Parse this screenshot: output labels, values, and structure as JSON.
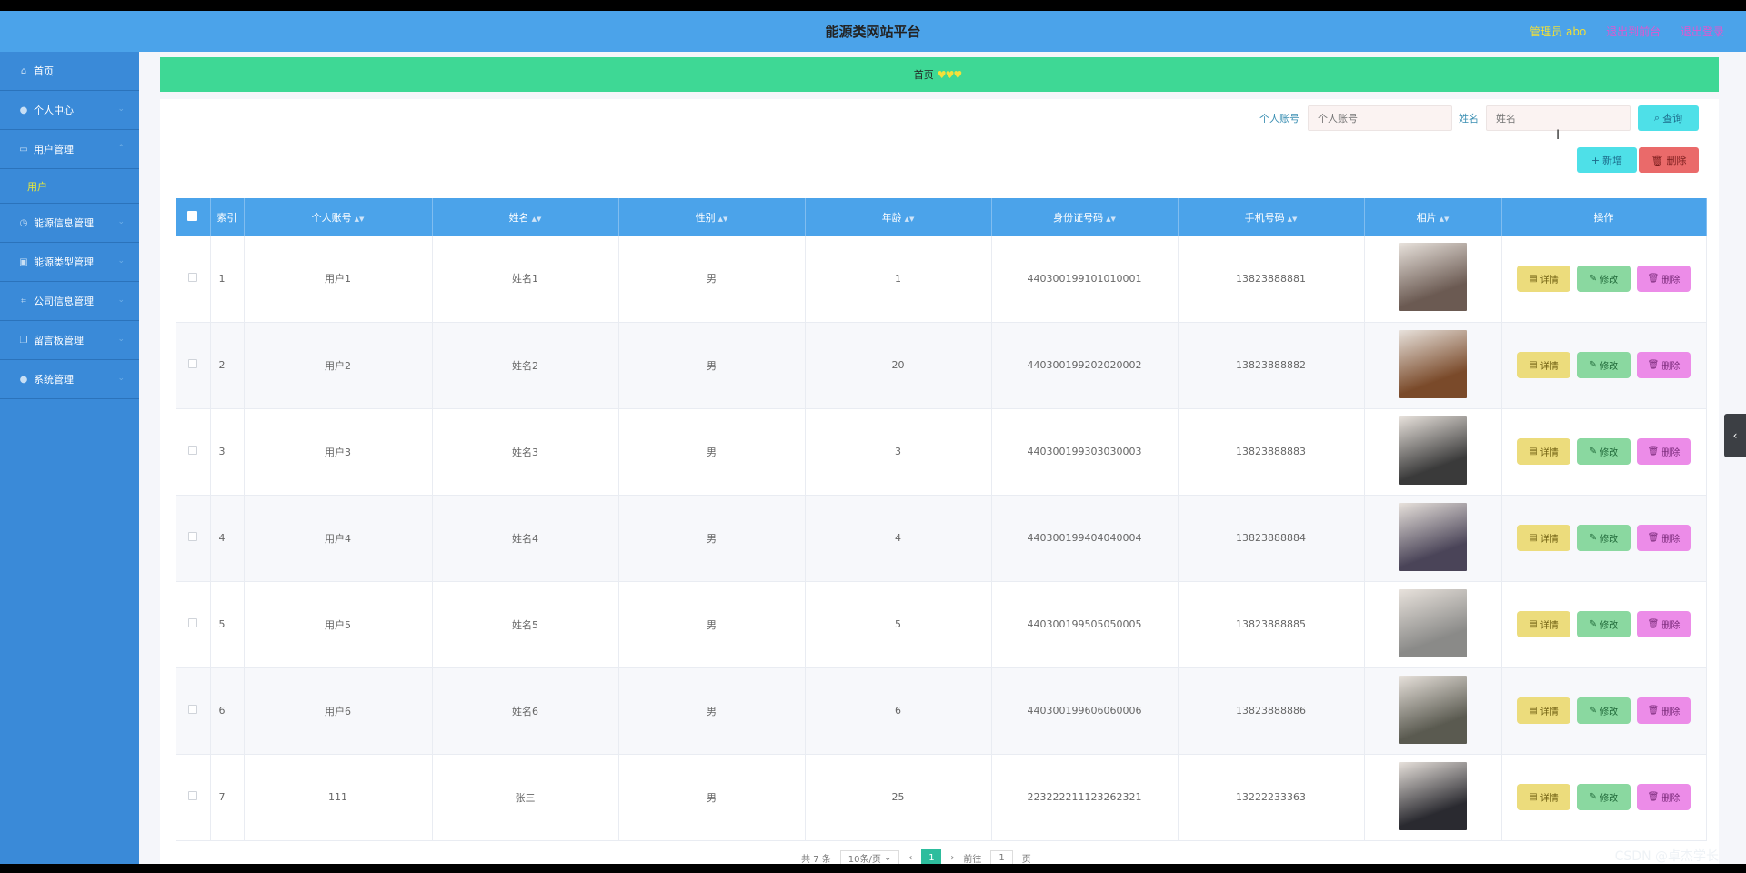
{
  "header": {
    "title": "能源类网站平台",
    "admin_label": "管理员 abo",
    "goto_front": "退出到前台",
    "logout": "退出登录"
  },
  "sidebar": {
    "items": [
      {
        "label": "首页",
        "icon": "home-icon"
      },
      {
        "label": "个人中心",
        "icon": "user-icon"
      },
      {
        "label": "用户管理",
        "icon": "message-icon"
      },
      {
        "label": "能源信息管理",
        "icon": "clock-icon"
      },
      {
        "label": "能源类型管理",
        "icon": "folder-icon"
      },
      {
        "label": "公司信息管理",
        "icon": "crop-icon"
      },
      {
        "label": "留言板管理",
        "icon": "copy-icon"
      },
      {
        "label": "系统管理",
        "icon": "user-icon"
      }
    ],
    "sub_item": "用户"
  },
  "breadcrumb": {
    "home": "首页",
    "hearts": "♥♥♥"
  },
  "search": {
    "account_label": "个人账号",
    "account_placeholder": "个人账号",
    "name_label": "姓名",
    "name_placeholder": "姓名",
    "search_button": "查询"
  },
  "actions": {
    "add_button": "新增",
    "delete_button": "删除"
  },
  "table": {
    "columns": [
      "索引",
      "个人账号",
      "姓名",
      "性别",
      "年龄",
      "身份证号码",
      "手机号码",
      "相片",
      "操作"
    ],
    "rows": [
      {
        "index": "1",
        "account": "用户1",
        "name": "姓名1",
        "gender": "男",
        "age": "1",
        "id_card": "440300199101010001",
        "phone": "13823888881",
        "photo_color": "#6b5a52"
      },
      {
        "index": "2",
        "account": "用户2",
        "name": "姓名2",
        "gender": "男",
        "age": "20",
        "id_card": "440300199202020002",
        "phone": "13823888882",
        "photo_color": "#7a4a2a"
      },
      {
        "index": "3",
        "account": "用户3",
        "name": "姓名3",
        "gender": "男",
        "age": "3",
        "id_card": "440300199303030003",
        "phone": "13823888883",
        "photo_color": "#3a3a3a"
      },
      {
        "index": "4",
        "account": "用户4",
        "name": "姓名4",
        "gender": "男",
        "age": "4",
        "id_card": "440300199404040004",
        "phone": "13823888884",
        "photo_color": "#4a4458"
      },
      {
        "index": "5",
        "account": "用户5",
        "name": "姓名5",
        "gender": "男",
        "age": "5",
        "id_card": "440300199505050005",
        "phone": "13823888885",
        "photo_color": "#8a8a88"
      },
      {
        "index": "6",
        "account": "用户6",
        "name": "姓名6",
        "gender": "男",
        "age": "6",
        "id_card": "440300199606060006",
        "phone": "13823888886",
        "photo_color": "#5a5a50"
      },
      {
        "index": "7",
        "account": "111",
        "name": "张三",
        "gender": "男",
        "age": "25",
        "id_card": "223222211123262321",
        "phone": "13222233363",
        "photo_color": "#2a2a30"
      }
    ],
    "op_labels": {
      "detail": "详情",
      "edit": "修改",
      "delete": "删除"
    }
  },
  "pager": {
    "total": "共 7 条",
    "page_size": "10条/页",
    "current_page": "1",
    "goto_label": "前往",
    "goto_value": "1",
    "page_unit": "页"
  },
  "watermark": "CSDN @卓杰学长"
}
